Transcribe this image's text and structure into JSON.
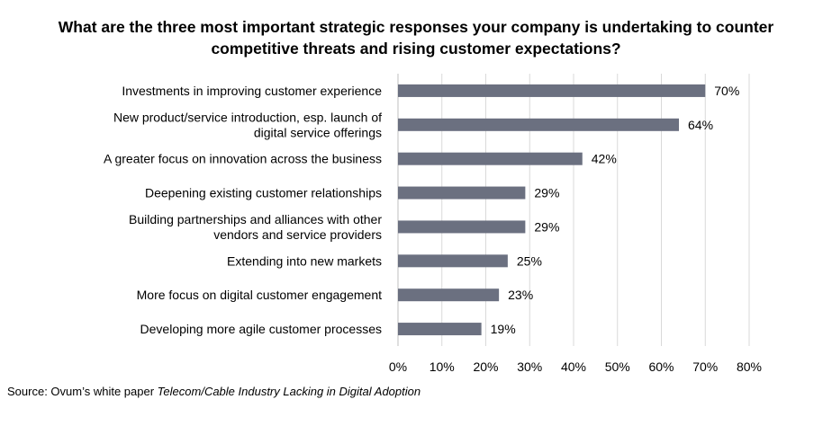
{
  "title": {
    "line1": "What are the three most important strategic responses your company is undertaking to counter",
    "line2": "competitive threats and rising customer expectations?"
  },
  "source": {
    "prefix": "Source: Ovum’s white paper ",
    "italic": "Telecom/Cable Industry Lacking in Digital Adoption"
  },
  "colors": {
    "bar": "#6b7080",
    "grid": "#d9d9d9",
    "axis": "#bfbfbf",
    "text": "#000000"
  },
  "chart_data": {
    "type": "bar",
    "orientation": "horizontal",
    "categories": [
      [
        "Investments in improving customer experience"
      ],
      [
        "New product/service introduction, esp. launch of",
        "digital service offerings"
      ],
      [
        "A greater focus on innovation across the business"
      ],
      [
        "Deepening existing customer relationships"
      ],
      [
        "Building partnerships and alliances with other",
        "vendors and service providers"
      ],
      [
        "Extending into new markets"
      ],
      [
        "More focus on digital customer engagement"
      ],
      [
        "Developing more agile customer processes"
      ]
    ],
    "values": [
      70,
      64,
      42,
      29,
      29,
      25,
      23,
      19
    ],
    "value_labels": [
      "70%",
      "64%",
      "42%",
      "29%",
      "29%",
      "25%",
      "23%",
      "19%"
    ],
    "xlim": [
      0,
      80
    ],
    "xticks": [
      0,
      10,
      20,
      30,
      40,
      50,
      60,
      70,
      80
    ],
    "xtick_labels": [
      "0%",
      "10%",
      "20%",
      "30%",
      "40%",
      "50%",
      "60%",
      "70%",
      "80%"
    ],
    "grid": true,
    "legend": false
  }
}
